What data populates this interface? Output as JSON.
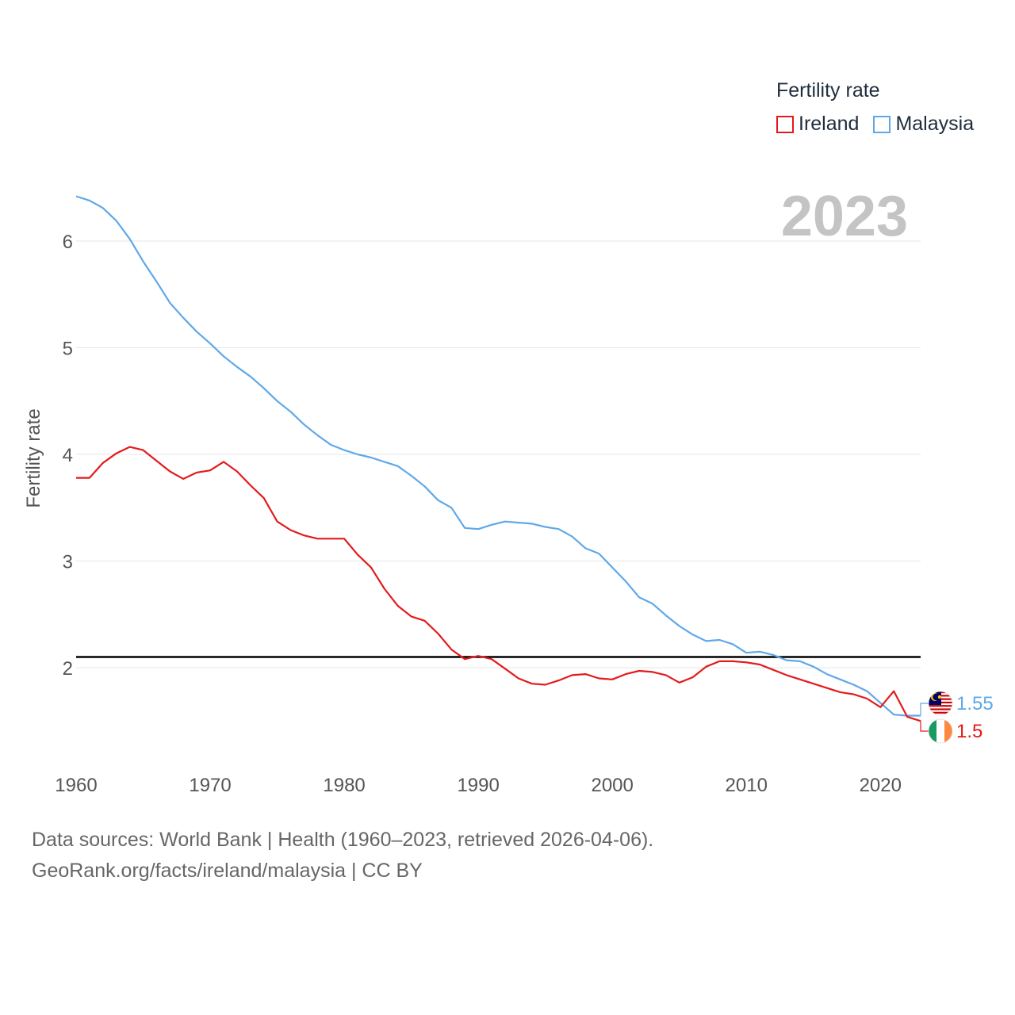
{
  "legend": {
    "title": "Fertility rate",
    "items": [
      {
        "label": "Ireland",
        "color": "#e41a1c"
      },
      {
        "label": "Malaysia",
        "color": "#5fa8e8"
      }
    ]
  },
  "year_display": "2023",
  "source": {
    "line1": "Data sources: World Bank | Health (1960–2023, retrieved 2026-04-06).",
    "line2": "GeoRank.org/facts/ireland/malaysia | CC BY"
  },
  "chart_data": {
    "type": "line",
    "title": "",
    "xlabel": "",
    "ylabel": "Fertility rate",
    "xlim": [
      1960,
      2023
    ],
    "ylim": [
      1.2,
      6.5
    ],
    "x_ticks": [
      1960,
      1970,
      1980,
      1990,
      2000,
      2010,
      2020
    ],
    "y_ticks": [
      2,
      3,
      4,
      5,
      6
    ],
    "reference_line": {
      "y": 2.1,
      "color": "#000000"
    },
    "x": [
      1960,
      1961,
      1962,
      1963,
      1964,
      1965,
      1966,
      1967,
      1968,
      1969,
      1970,
      1971,
      1972,
      1973,
      1974,
      1975,
      1976,
      1977,
      1978,
      1979,
      1980,
      1981,
      1982,
      1983,
      1984,
      1985,
      1986,
      1987,
      1988,
      1989,
      1990,
      1991,
      1992,
      1993,
      1994,
      1995,
      1996,
      1997,
      1998,
      1999,
      2000,
      2001,
      2002,
      2003,
      2004,
      2005,
      2006,
      2007,
      2008,
      2009,
      2010,
      2011,
      2012,
      2013,
      2014,
      2015,
      2016,
      2017,
      2018,
      2019,
      2020,
      2021,
      2022,
      2023
    ],
    "series": [
      {
        "name": "Malaysia",
        "color": "#5fa8e8",
        "end_label": "1.55",
        "values": [
          6.42,
          6.38,
          6.31,
          6.19,
          6.02,
          5.81,
          5.62,
          5.42,
          5.28,
          5.15,
          5.04,
          4.92,
          4.82,
          4.73,
          4.62,
          4.5,
          4.4,
          4.28,
          4.18,
          4.09,
          4.04,
          4.0,
          3.97,
          3.93,
          3.89,
          3.8,
          3.7,
          3.57,
          3.5,
          3.31,
          3.3,
          3.34,
          3.37,
          3.36,
          3.35,
          3.32,
          3.3,
          3.23,
          3.12,
          3.07,
          2.94,
          2.81,
          2.66,
          2.6,
          2.49,
          2.39,
          2.31,
          2.25,
          2.26,
          2.22,
          2.14,
          2.15,
          2.12,
          2.07,
          2.06,
          2.01,
          1.94,
          1.89,
          1.84,
          1.78,
          1.67,
          1.56,
          1.55,
          1.55
        ]
      },
      {
        "name": "Ireland",
        "color": "#e41a1c",
        "end_label": "1.5",
        "values": [
          3.78,
          3.78,
          3.92,
          4.01,
          4.07,
          4.04,
          3.94,
          3.84,
          3.77,
          3.83,
          3.85,
          3.93,
          3.84,
          3.71,
          3.59,
          3.37,
          3.29,
          3.24,
          3.21,
          3.21,
          3.21,
          3.06,
          2.94,
          2.74,
          2.58,
          2.48,
          2.44,
          2.32,
          2.17,
          2.08,
          2.11,
          2.08,
          1.99,
          1.9,
          1.85,
          1.84,
          1.88,
          1.93,
          1.94,
          1.9,
          1.89,
          1.94,
          1.97,
          1.96,
          1.93,
          1.86,
          1.91,
          2.01,
          2.06,
          2.06,
          2.05,
          2.03,
          1.98,
          1.93,
          1.89,
          1.85,
          1.81,
          1.77,
          1.75,
          1.71,
          1.63,
          1.78,
          1.54,
          1.5
        ]
      }
    ]
  }
}
